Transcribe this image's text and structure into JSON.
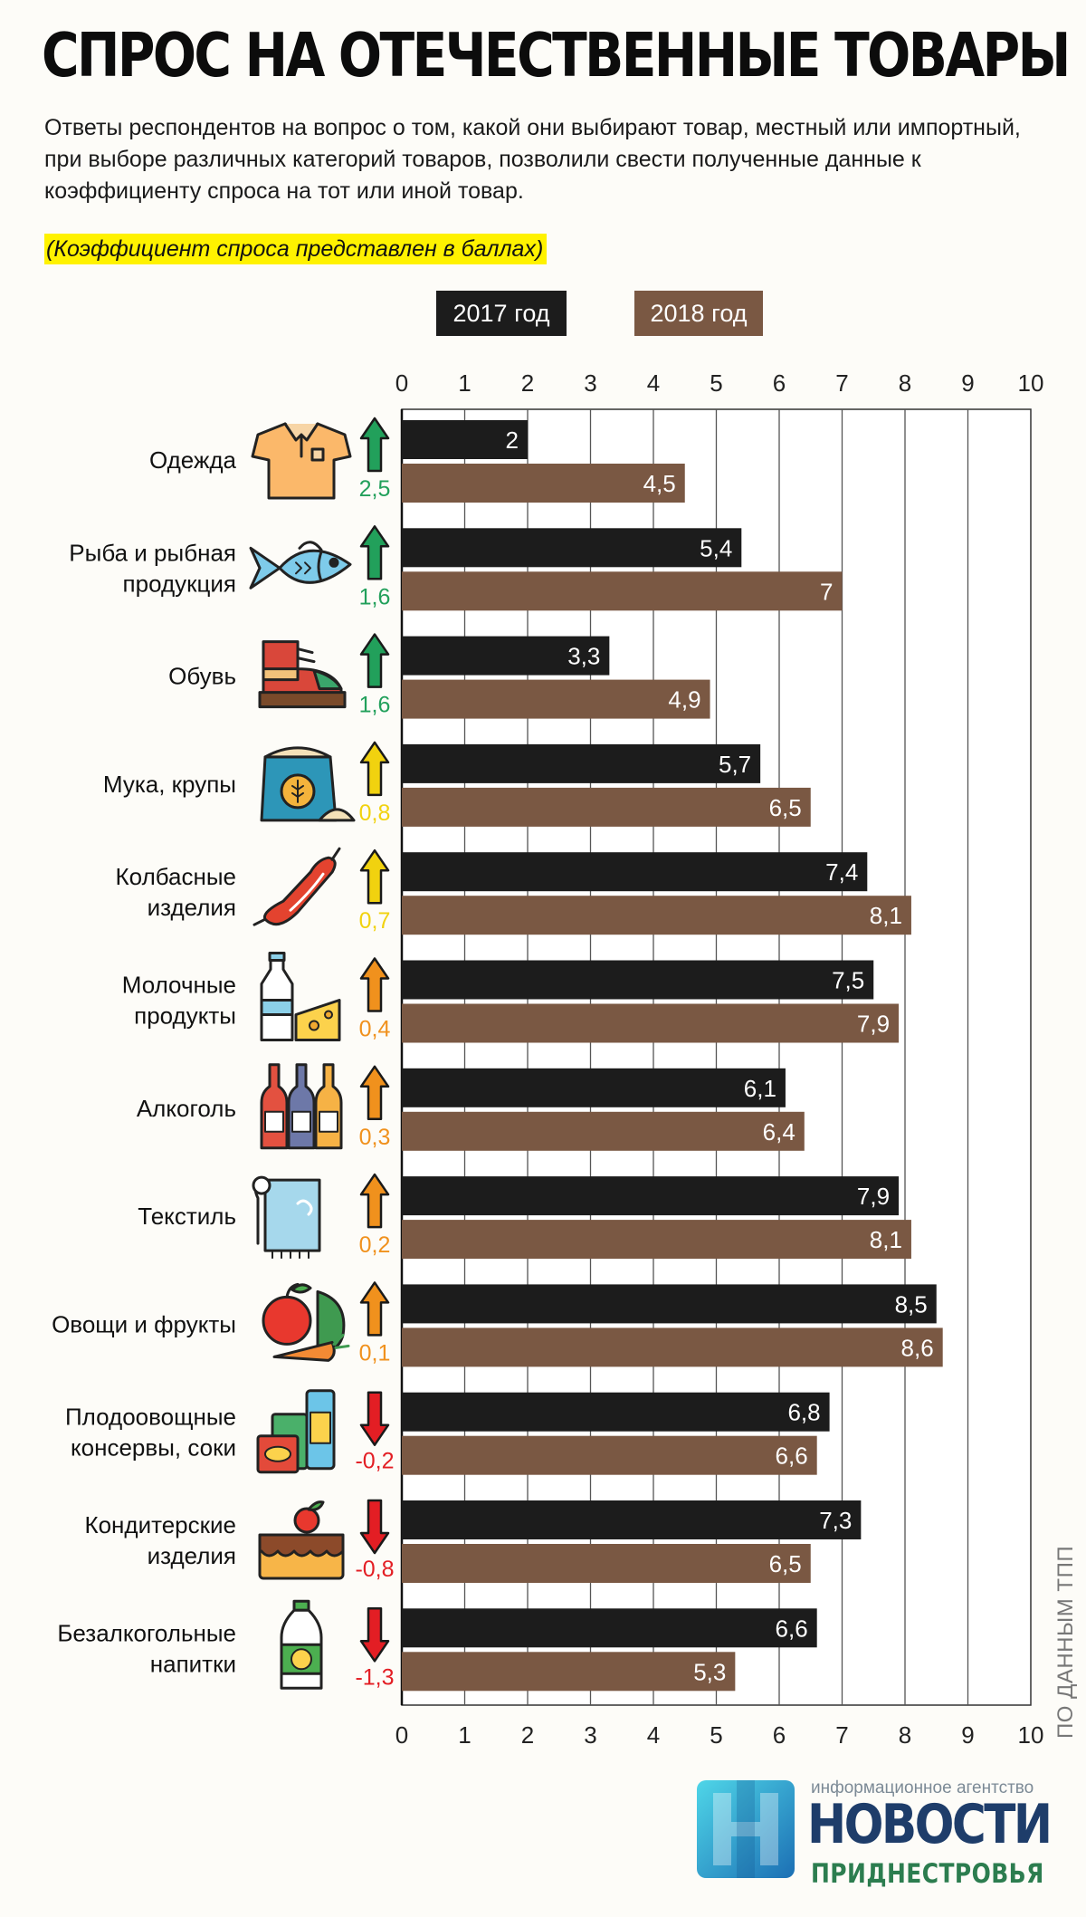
{
  "header": {
    "title": "СПРОС НА ОТЕЧЕСТВЕННЫЕ ТОВАРЫ",
    "subtitle": "Ответы респондентов на вопрос о том, какой они выбирают товар, местный или импортный, при выборе различных категорий товаров, позволили свести полученные данные к коэффициенту спроса на тот или иной товар.",
    "note": "(Коэффициент спроса представлен в баллах)"
  },
  "source": "ПО ДАННЫМ ТПП",
  "logo": {
    "top_text": "информационное агентство",
    "main_text": "НОВОСТИ",
    "sub_text": "ПРИДНЕСТРОВЬЯ"
  },
  "colors": {
    "bar_2017": "#1c1c1c",
    "bar_2018": "#7a5843",
    "change_green": "#22a05b",
    "change_yellow": "#f1d20f",
    "change_orange": "#f0911d",
    "change_red": "#e31e24",
    "highlight": "#fff200"
  },
  "chart_data": {
    "type": "bar",
    "orientation": "horizontal",
    "title": "СПРОС НА ОТЕЧЕСТВЕННЫЕ ТОВАРЫ",
    "xlim": [
      0,
      10
    ],
    "x_ticks": [
      "0",
      "1",
      "2",
      "3",
      "4",
      "5",
      "6",
      "7",
      "8",
      "9",
      "10"
    ],
    "grid": true,
    "legend_position": "top",
    "categories": [
      "Одежда",
      "Рыба и рыбная продукция",
      "Обувь",
      "Мука, крупы",
      "Колбасные изделия",
      "Молочные продукты",
      "Алкоголь",
      "Текстиль",
      "Овощи и фрукты",
      "Плодоовощные консервы, соки",
      "Кондитерские изделия",
      "Безалкогольные напитки"
    ],
    "category_lines": [
      [
        "Одежда"
      ],
      [
        "Рыба и рыбная",
        "продукция"
      ],
      [
        "Обувь"
      ],
      [
        "Мука, крупы"
      ],
      [
        "Колбасные",
        "изделия"
      ],
      [
        "Молочные",
        "продукты"
      ],
      [
        "Алкоголь"
      ],
      [
        "Текстиль"
      ],
      [
        "Овощи и фрукты"
      ],
      [
        "Плодоовощные",
        "консервы, соки"
      ],
      [
        "Кондитерские",
        "изделия"
      ],
      [
        "Безалкогольные",
        "напитки"
      ]
    ],
    "icons": [
      "shirt-icon",
      "fish-icon",
      "boot-icon",
      "flour-sack-icon",
      "sausage-icon",
      "milk-cheese-icon",
      "wine-bottles-icon",
      "towel-icon",
      "fruit-vegetables-icon",
      "canned-food-icon",
      "cake-icon",
      "soft-drink-bottle-icon"
    ],
    "series": [
      {
        "name": "2017 год",
        "values": [
          2,
          5.4,
          3.3,
          5.7,
          7.4,
          7.5,
          6.1,
          7.9,
          8.5,
          6.8,
          7.3,
          6.6
        ],
        "labels": [
          "2",
          "5,4",
          "3,3",
          "5,7",
          "7,4",
          "7,5",
          "6,1",
          "7,9",
          "8,5",
          "6,8",
          "7,3",
          "6,6"
        ]
      },
      {
        "name": "2018 год",
        "values": [
          4.5,
          7,
          4.9,
          6.5,
          8.1,
          7.9,
          6.4,
          8.1,
          8.6,
          6.6,
          6.5,
          5.3
        ],
        "labels": [
          "4,5",
          "7",
          "4,9",
          "6,5",
          "8,1",
          "7,9",
          "6,4",
          "8,1",
          "8,6",
          "6,6",
          "6,5",
          "5,3"
        ]
      }
    ],
    "change": {
      "values": [
        2.5,
        1.6,
        1.6,
        0.8,
        0.7,
        0.4,
        0.3,
        0.2,
        0.1,
        -0.2,
        -0.8,
        -1.3
      ],
      "labels": [
        "2,5",
        "1,6",
        "1,6",
        "0,8",
        "0,7",
        "0,4",
        "0,3",
        "0,2",
        "0,1",
        "-0,2",
        "-0,8",
        "-1,3"
      ],
      "levels": [
        "green",
        "green",
        "green",
        "yellow",
        "yellow",
        "orange",
        "orange",
        "orange",
        "orange",
        "red",
        "red",
        "red"
      ]
    }
  }
}
